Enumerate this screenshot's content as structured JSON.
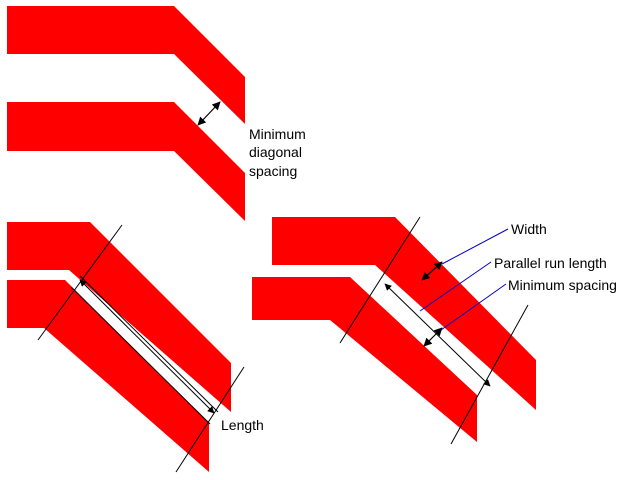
{
  "colors": {
    "background": "#ffffff",
    "trace": "#ff0000",
    "line": "#000000",
    "leader": "#0000cc"
  },
  "labels": {
    "min_diag_1": "Minimum",
    "min_diag_2": "diagonal",
    "min_diag_3": "spacing",
    "length": "Length",
    "width": "Width",
    "parallel_run": "Parallel run length",
    "min_spacing": "Minimum spacing"
  }
}
